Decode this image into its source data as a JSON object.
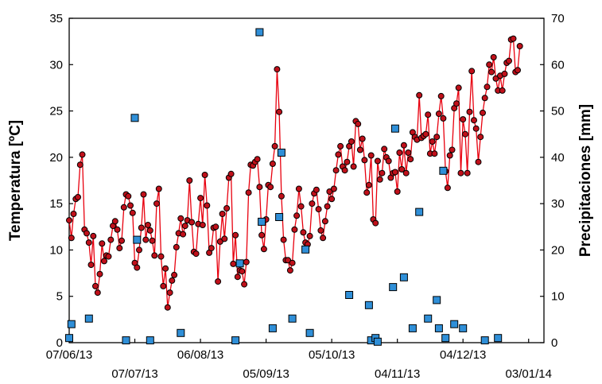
{
  "chart_data": {
    "type": "line+scatter",
    "ylabel": "Temperatura [ºC]",
    "y2label": "Precipitaciones [mm]",
    "ylim": [
      0,
      35
    ],
    "y2lim": [
      0,
      70
    ],
    "yticks": [
      "0",
      "5",
      "10",
      "15",
      "20",
      "25",
      "30",
      "35"
    ],
    "y2ticks": [
      "0",
      "10",
      "20",
      "30",
      "40",
      "50",
      "60",
      "70"
    ],
    "xlim": [
      "2013-06-07",
      "2014-01-10"
    ],
    "xticks": [
      {
        "date": "2013-06-07",
        "label": "07/06/13",
        "row": 1
      },
      {
        "date": "2013-07-07",
        "label": "07/07/13",
        "row": 2
      },
      {
        "date": "2013-08-06",
        "label": "06/08/13",
        "row": 1
      },
      {
        "date": "2013-09-05",
        "label": "05/09/13",
        "row": 2
      },
      {
        "date": "2013-10-05",
        "label": "05/10/13",
        "row": 1
      },
      {
        "date": "2013-11-04",
        "label": "04/11/13",
        "row": 2
      },
      {
        "date": "2013-12-04",
        "label": "04/12/13",
        "row": 1
      },
      {
        "date": "2014-01-03",
        "label": "03/01/14",
        "row": 2
      }
    ],
    "series": [
      {
        "axis": "left",
        "kind": "line-with-markers",
        "color": "#e8000e",
        "marker_color": "#c0101a",
        "start_date": "2013-06-07",
        "step_days": 1,
        "values": [
          13.2,
          11.3,
          13.9,
          15.5,
          15.7,
          19.2,
          20.3,
          12.2,
          11.8,
          10.8,
          8.4,
          11.5,
          6.1,
          5.4,
          7.4,
          10.7,
          8.8,
          9.4,
          9.3,
          11.1,
          12.6,
          13.1,
          12.2,
          10.2,
          11.0,
          14.6,
          16.0,
          15.8,
          14.8,
          14.0,
          8.6,
          8.1,
          10.0,
          12.4,
          16.0,
          11.1,
          12.7,
          12.1,
          11.0,
          9.4,
          15.0,
          16.6,
          9.3,
          6.1,
          8.0,
          3.8,
          5.4,
          6.7,
          7.3,
          10.3,
          11.8,
          13.4,
          11.7,
          12.6,
          13.2,
          17.5,
          13.0,
          9.8,
          9.6,
          12.8,
          15.6,
          12.7,
          18.1,
          14.8,
          9.7,
          10.2,
          12.4,
          12.5,
          6.6,
          10.9,
          13.9,
          11.2,
          14.5,
          17.8,
          18.2,
          8.5,
          11.6,
          7.1,
          7.8,
          7.7,
          6.3,
          8.7,
          16.2,
          19.2,
          19.1,
          19.5,
          19.8,
          16.8,
          11.6,
          10.1,
          13.3,
          17.0,
          16.8,
          19.3,
          21.2,
          29.5,
          24.9,
          15.8,
          11.1,
          8.9,
          8.9,
          7.8,
          8.6,
          12.2,
          13.7,
          16.6,
          14.7,
          11.9,
          10.8,
          10.6,
          11.5,
          15.0,
          16.1,
          16.5,
          14.4,
          12.1,
          11.3,
          13.1,
          14.7,
          16.3,
          15.5,
          16.6,
          18.6,
          20.3,
          21.2,
          19.0,
          18.6,
          19.5,
          21.2,
          21.7,
          19.0,
          23.9,
          23.6,
          20.8,
          22.0,
          19.7,
          16.2,
          17.0,
          20.2,
          13.3,
          12.9,
          19.6,
          17.6,
          18.3,
          20.9,
          20.0,
          19.6,
          17.8,
          18.3,
          18.4,
          16.3,
          20.5,
          18.7,
          21.3,
          18.3,
          20.5,
          19.8,
          22.7,
          22.2,
          21.9,
          26.7,
          22.1,
          22.3,
          22.5,
          24.6,
          20.4,
          21.7,
          20.4,
          22.2,
          24.7,
          26.6,
          24.2,
          18.5,
          16.7,
          20.2,
          20.8,
          25.3,
          25.8,
          27.5,
          18.3,
          24.1,
          22.5,
          18.3,
          24.9,
          29.3,
          24.0,
          23.1,
          19.5,
          22.2,
          24.8,
          26.4,
          27.6,
          30.0,
          29.2,
          30.8,
          28.5,
          27.2,
          28.8,
          27.2,
          29.0,
          30.2,
          30.4,
          32.7,
          32.8,
          29.2,
          29.4,
          32.0
        ]
      },
      {
        "axis": "right",
        "kind": "markers",
        "color": "#2f8fd8",
        "points": [
          {
            "date": "2013-06-07",
            "value": 1
          },
          {
            "date": "2013-06-08",
            "value": 4
          },
          {
            "date": "2013-06-16",
            "value": 5.2
          },
          {
            "date": "2013-07-03",
            "value": 0.5
          },
          {
            "date": "2013-07-07",
            "value": 48.5
          },
          {
            "date": "2013-07-08",
            "value": 22.2
          },
          {
            "date": "2013-07-14",
            "value": 0.5
          },
          {
            "date": "2013-07-28",
            "value": 2.1
          },
          {
            "date": "2013-08-22",
            "value": 0.5
          },
          {
            "date": "2013-08-24",
            "value": 17.1
          },
          {
            "date": "2013-09-02",
            "value": 67
          },
          {
            "date": "2013-09-03",
            "value": 26.1
          },
          {
            "date": "2013-09-08",
            "value": 3.1
          },
          {
            "date": "2013-09-11",
            "value": 27.1
          },
          {
            "date": "2013-09-12",
            "value": 41
          },
          {
            "date": "2013-09-17",
            "value": 5.2
          },
          {
            "date": "2013-09-23",
            "value": 20.1
          },
          {
            "date": "2013-09-25",
            "value": 2.1
          },
          {
            "date": "2013-10-13",
            "value": 10.3
          },
          {
            "date": "2013-10-22",
            "value": 8.1
          },
          {
            "date": "2013-10-23",
            "value": 0.5
          },
          {
            "date": "2013-10-25",
            "value": 1
          },
          {
            "date": "2013-10-26",
            "value": 0.2
          },
          {
            "date": "2013-11-02",
            "value": 12
          },
          {
            "date": "2013-11-03",
            "value": 46.2
          },
          {
            "date": "2013-11-07",
            "value": 14.1
          },
          {
            "date": "2013-11-11",
            "value": 3.1
          },
          {
            "date": "2013-11-14",
            "value": 28.2
          },
          {
            "date": "2013-11-18",
            "value": 5.2
          },
          {
            "date": "2013-11-22",
            "value": 9.2
          },
          {
            "date": "2013-11-23",
            "value": 3.1
          },
          {
            "date": "2013-11-25",
            "value": 37.1
          },
          {
            "date": "2013-11-26",
            "value": 1
          },
          {
            "date": "2013-11-30",
            "value": 4
          },
          {
            "date": "2013-12-04",
            "value": 3.1
          },
          {
            "date": "2013-12-14",
            "value": 0.5
          },
          {
            "date": "2013-12-20",
            "value": 1
          }
        ]
      }
    ]
  }
}
